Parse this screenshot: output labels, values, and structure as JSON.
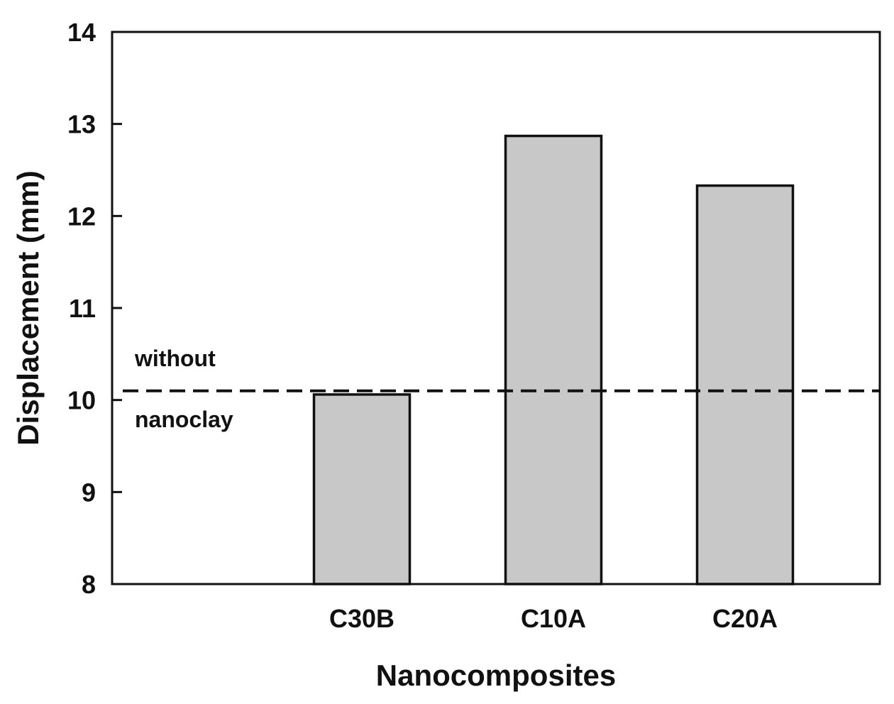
{
  "chart_data": {
    "type": "bar",
    "title": "",
    "xlabel": "Nanocomposites",
    "ylabel": "Displacement (mm)",
    "categories": [
      "C30B",
      "C10A",
      "C20A"
    ],
    "values": [
      10.06,
      12.87,
      12.33
    ],
    "ylim": [
      8,
      14
    ],
    "yticks": [
      8,
      9,
      10,
      11,
      12,
      13,
      14
    ],
    "grid": false,
    "bar_color": "#c8c8c8",
    "reference_line": {
      "value": 10.1,
      "style": "dashed",
      "label_top": "without",
      "label_bottom": "nanoclay"
    }
  }
}
